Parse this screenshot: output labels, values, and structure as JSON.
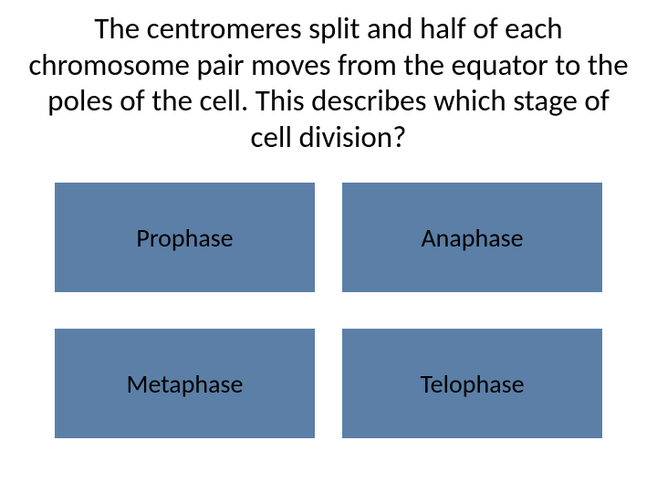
{
  "question": {
    "text": "The centromeres split and half of each chromosome pair moves from the equator to the poles of the cell. This describes which stage of cell division?",
    "font_size": 33,
    "color": "#000000",
    "align": "center"
  },
  "answers": {
    "type": "grid",
    "rows": 2,
    "cols": 2,
    "box_color": "#5b7fa6",
    "text_color": "#000000",
    "font_size": 28,
    "gap_row": 40,
    "gap_col": 30,
    "items": [
      {
        "label": "Prophase"
      },
      {
        "label": "Anaphase"
      },
      {
        "label": "Metaphase"
      },
      {
        "label": "Telophase"
      }
    ]
  },
  "background_color": "#ffffff"
}
